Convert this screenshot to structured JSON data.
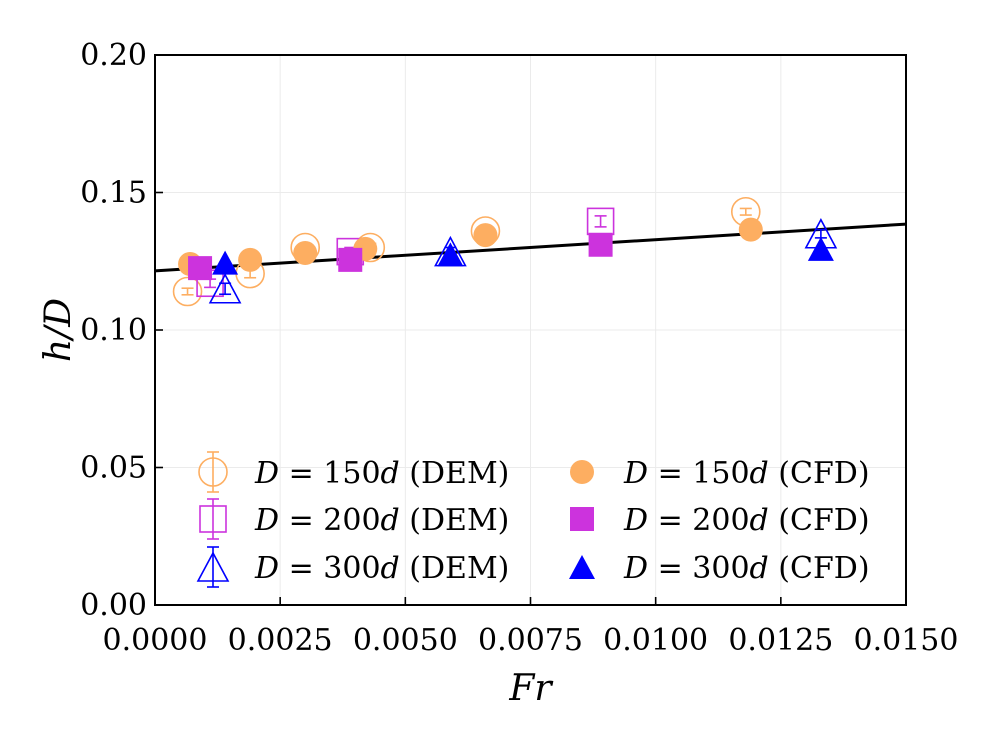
{
  "chart_data": {
    "type": "scatter",
    "title": "",
    "xlabel": "Fr",
    "ylabel": "h/D",
    "xlim": [
      0.0,
      0.015
    ],
    "ylim": [
      0.0,
      0.2
    ],
    "xticks": [
      0.0,
      0.0025,
      0.005,
      0.0075,
      0.01,
      0.0125,
      0.015
    ],
    "xtick_labels": [
      "0.0000",
      "0.0025",
      "0.0050",
      "0.0075",
      "0.0100",
      "0.0125",
      "0.0150"
    ],
    "yticks": [
      0.0,
      0.05,
      0.1,
      0.15,
      0.2
    ],
    "ytick_labels": [
      "0.00",
      "0.05",
      "0.10",
      "0.15",
      "0.20"
    ],
    "grid": true,
    "legend_position": "lower-center",
    "colors": {
      "d150": "#fdae61",
      "d200": "#cc33dd",
      "d300": "#0000ff",
      "fit": "#000000"
    },
    "fit_line": {
      "x": [
        0.0,
        0.015
      ],
      "y": [
        0.1215,
        0.1385
      ]
    },
    "series": [
      {
        "name": "D = 150d (DEM)",
        "marker": "circle-open",
        "color": "#fdae61",
        "x": [
          0.00065,
          0.0019,
          0.003,
          0.0043,
          0.0066,
          0.0118
        ],
        "y": [
          0.114,
          0.1205,
          0.13,
          0.13,
          0.136,
          0.143
        ],
        "err": [
          0.0012,
          0.0015,
          0.0015,
          0.0015,
          0.0015,
          0.0012
        ]
      },
      {
        "name": "D = 200d (DEM)",
        "marker": "square-open",
        "color": "#cc33dd",
        "x": [
          0.0011,
          0.0039,
          0.0089
        ],
        "y": [
          0.117,
          0.1285,
          0.1395
        ],
        "err": [
          0.0015,
          0.0015,
          0.002
        ]
      },
      {
        "name": "D = 300d (DEM)",
        "marker": "triangle-open",
        "color": "#0000ff",
        "x": [
          0.0014,
          0.0059,
          0.0133
        ],
        "y": [
          0.115,
          0.1285,
          0.135
        ],
        "err": [
          0.002,
          0.0015,
          0.0015
        ]
      },
      {
        "name": "D = 150d (CFD)",
        "marker": "circle-filled",
        "color": "#fdae61",
        "x": [
          0.0007,
          0.0019,
          0.003,
          0.0042,
          0.0066,
          0.0119
        ],
        "y": [
          0.124,
          0.1255,
          0.128,
          0.1295,
          0.1345,
          0.1365
        ]
      },
      {
        "name": "D = 200d (CFD)",
        "marker": "square-filled",
        "color": "#cc33dd",
        "x": [
          0.0009,
          0.0039,
          0.0089
        ],
        "y": [
          0.1225,
          0.1255,
          0.131
        ]
      },
      {
        "name": "D = 300d (CFD)",
        "marker": "triangle-filled",
        "color": "#0000ff",
        "x": [
          0.0014,
          0.0059,
          0.0133
        ],
        "y": [
          0.1245,
          0.1275,
          0.1295
        ]
      }
    ],
    "legend": [
      {
        "series": 0,
        "prefix": "D = 150",
        "var": "d",
        "suffix": " (DEM)"
      },
      {
        "series": 3,
        "prefix": "D = 150",
        "var": "d",
        "suffix": " (CFD)"
      },
      {
        "series": 1,
        "prefix": "D = 200",
        "var": "d",
        "suffix": " (DEM)"
      },
      {
        "series": 4,
        "prefix": "D = 200",
        "var": "d",
        "suffix": " (CFD)"
      },
      {
        "series": 2,
        "prefix": "D = 300",
        "var": "d",
        "suffix": " (DEM)"
      },
      {
        "series": 5,
        "prefix": "D = 300",
        "var": "d",
        "suffix": " (CFD)"
      }
    ]
  }
}
